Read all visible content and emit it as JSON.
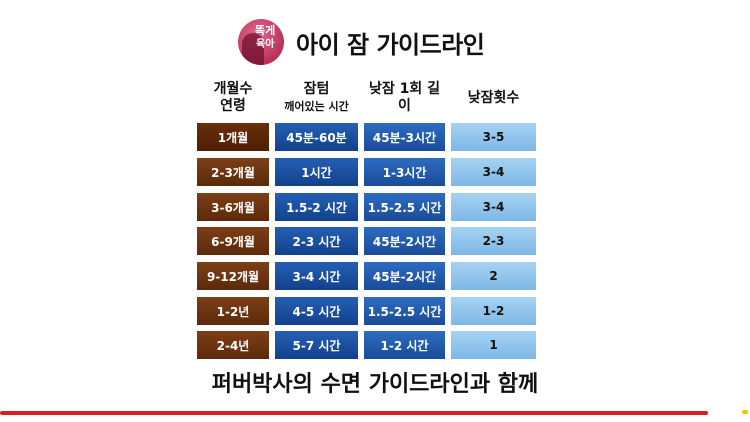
{
  "header": {
    "logo_text_top": "똑게",
    "logo_text_bottom": "육아",
    "title": "아이 잠 가이드라인"
  },
  "table": {
    "headers": [
      {
        "line1": "개월수",
        "line2": "연령"
      },
      {
        "line1": "잠텀",
        "line2": "깨어있는 시간"
      },
      {
        "line1": "낮잠 1회 길이",
        "line2": ""
      },
      {
        "line1": "낮잠횟수",
        "line2": ""
      }
    ],
    "rows": [
      [
        "1개월",
        "45분-60분",
        "45분-3시간",
        "3-5"
      ],
      [
        "2-3개월",
        "1시간",
        "1-3시간",
        "3-4"
      ],
      [
        "3-6개월",
        "1.5-2 시간",
        "1.5-2.5 시간",
        "3-4"
      ],
      [
        "6-9개월",
        "2-3 시간",
        "45분-2시간",
        "2-3"
      ],
      [
        "9-12개월",
        "3-4 시간",
        "45분-2시간",
        "2"
      ],
      [
        "1-2년",
        "4-5 시간",
        "1.5-2.5 시간",
        "1-2"
      ],
      [
        "2-4년",
        "5-7 시간",
        "1-2 시간",
        "1"
      ]
    ]
  },
  "footer": {
    "tagline": "퍼버박사의 수면 가이드라인과 함께"
  },
  "colors": {
    "month_col": "#6b3310",
    "blue_dark": "#1a4b98",
    "blue_light": "#8fc3ec",
    "accent_line": "#d81e1e"
  }
}
